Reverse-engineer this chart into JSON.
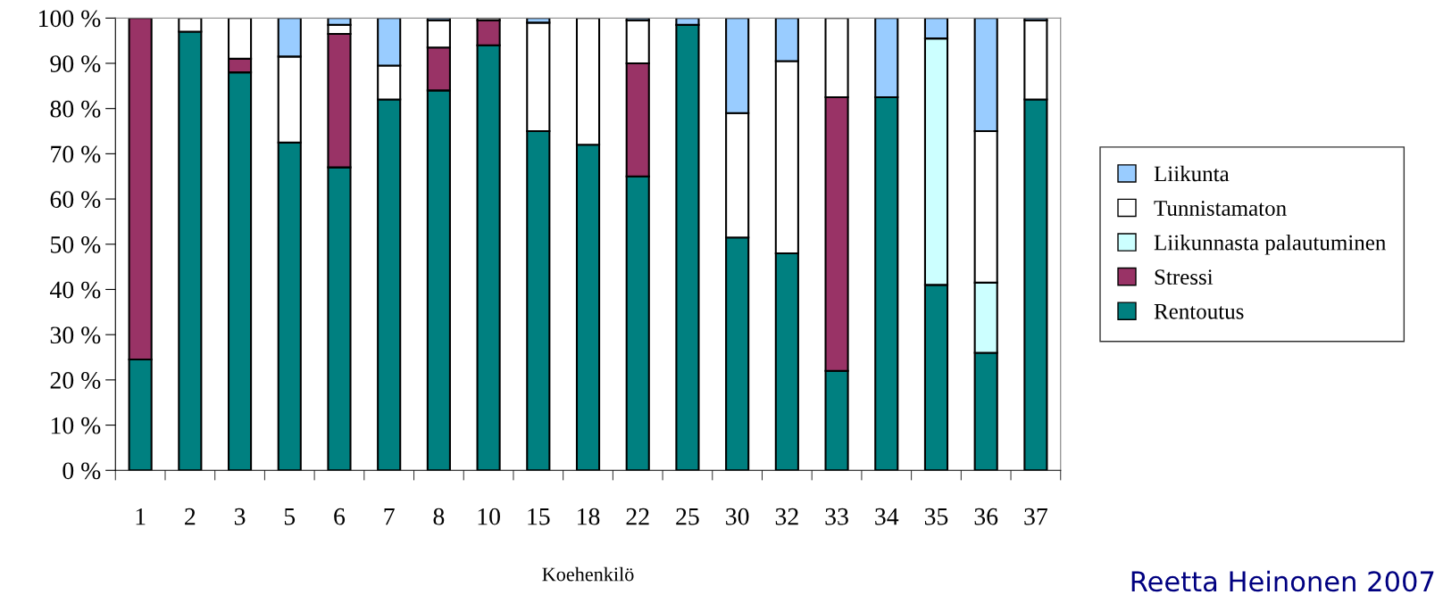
{
  "chart_data": {
    "type": "bar",
    "stacked": true,
    "xlabel": "Koehenkilö",
    "categories": [
      "1",
      "2",
      "3",
      "5",
      "6",
      "7",
      "8",
      "10",
      "15",
      "18",
      "22",
      "25",
      "30",
      "32",
      "33",
      "34",
      "35",
      "36",
      "37"
    ],
    "series": [
      {
        "name": "Rentoutus",
        "color": "#008080",
        "values": [
          24.5,
          97,
          88,
          72.5,
          67,
          82,
          84,
          94,
          75,
          72,
          65,
          98.5,
          51.5,
          48,
          22,
          82.5,
          41,
          26,
          82
        ]
      },
      {
        "name": "Stressi",
        "color": "#993366",
        "values": [
          75.5,
          0,
          3,
          0,
          29.5,
          0,
          9.5,
          5.5,
          0,
          0,
          25,
          0,
          0,
          0,
          60.5,
          0,
          0,
          0,
          0
        ]
      },
      {
        "name": "Liikunnasta palautuminen",
        "color": "#ccffff",
        "values": [
          0,
          0,
          0,
          0,
          0,
          0,
          0,
          0,
          0,
          0,
          0,
          0,
          0,
          0,
          0,
          0,
          54.5,
          15.5,
          0
        ]
      },
      {
        "name": "Tunnistamaton",
        "color": "#ffffff",
        "values": [
          0,
          3,
          9,
          19,
          2,
          7.5,
          6,
          0.5,
          24,
          28,
          9.5,
          0,
          27.5,
          42.5,
          17.5,
          0,
          0,
          33.5,
          17.5
        ]
      },
      {
        "name": "Liikunta",
        "color": "#99ccff",
        "values": [
          0,
          0,
          0,
          8.5,
          1.5,
          10.5,
          0.5,
          0,
          1,
          0,
          0.5,
          1.5,
          21,
          9.5,
          0,
          17.5,
          4.5,
          25,
          0.5
        ]
      }
    ],
    "ylim": [
      0,
      100
    ],
    "yticks": [
      {
        "value": 0,
        "label": "0 %"
      },
      {
        "value": 10,
        "label": "10 %"
      },
      {
        "value": 20,
        "label": "20 %"
      },
      {
        "value": 30,
        "label": "30 %"
      },
      {
        "value": 40,
        "label": "40 %"
      },
      {
        "value": 50,
        "label": "50 %"
      },
      {
        "value": 60,
        "label": "60 %"
      },
      {
        "value": 70,
        "label": "70 %"
      },
      {
        "value": 80,
        "label": "80 %"
      },
      {
        "value": 90,
        "label": "90 %"
      },
      {
        "value": 100,
        "label": "100 %"
      }
    ],
    "legend": "right",
    "grid": false,
    "annotations": [
      "Reetta Heinonen 2007"
    ]
  }
}
